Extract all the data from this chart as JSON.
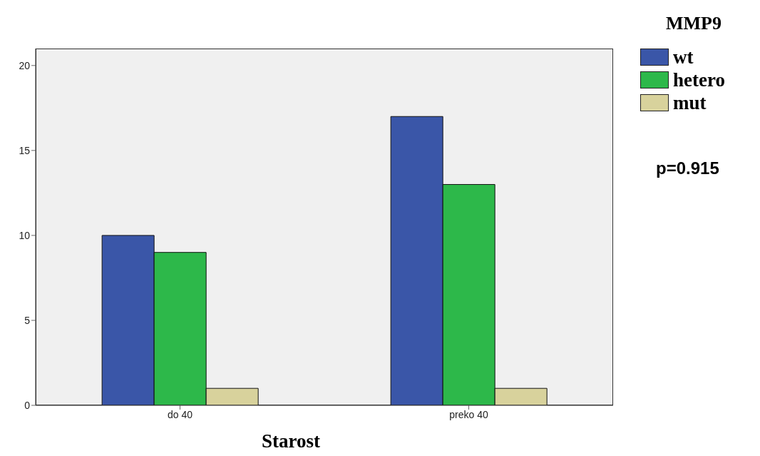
{
  "chart_data": {
    "type": "bar",
    "legend_title": "MMP9",
    "xlabel": "Starost",
    "categories": [
      "do 40",
      "preko 40"
    ],
    "series": [
      {
        "name": "wt",
        "color": "#3a56a8",
        "values": [
          10,
          17
        ]
      },
      {
        "name": "hetero",
        "color": "#2db84a",
        "values": [
          9,
          13
        ]
      },
      {
        "name": "mut",
        "color": "#d8d29c",
        "values": [
          1,
          1
        ]
      }
    ],
    "ylim": [
      0,
      21
    ],
    "yticks": [
      0,
      5,
      10,
      15,
      20
    ],
    "legend": "right",
    "annotations": [
      "p=0.915"
    ]
  }
}
